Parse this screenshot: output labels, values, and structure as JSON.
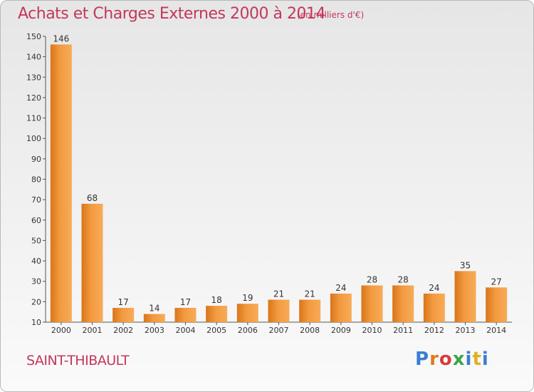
{
  "header": {
    "title": "Achats et Charges Externes 2000 à 2014",
    "subtitle": "(en milliers d'€)"
  },
  "footer": {
    "commune": "SAINT-THIBAULT",
    "logo_text": "Proxiti"
  },
  "colors": {
    "title": "#c3375b",
    "bar_light": "#f7a54e",
    "bar_dark": "#d9751a"
  },
  "chart_data": {
    "type": "bar",
    "title": "Achats et Charges Externes 2000 à 2014",
    "subtitle": "(en milliers d'€)",
    "categories": [
      "2000",
      "2001",
      "2002",
      "2003",
      "2004",
      "2005",
      "2006",
      "2007",
      "2008",
      "2009",
      "2010",
      "2011",
      "2012",
      "2013",
      "2014"
    ],
    "values": [
      146,
      68,
      17,
      14,
      17,
      18,
      19,
      21,
      21,
      24,
      28,
      28,
      24,
      35,
      27
    ],
    "ylim": [
      10,
      150
    ],
    "yticks": [
      10,
      20,
      30,
      40,
      50,
      60,
      70,
      80,
      90,
      100,
      110,
      120,
      130,
      140,
      150
    ],
    "grid": false,
    "xlabel": "",
    "ylabel": ""
  }
}
